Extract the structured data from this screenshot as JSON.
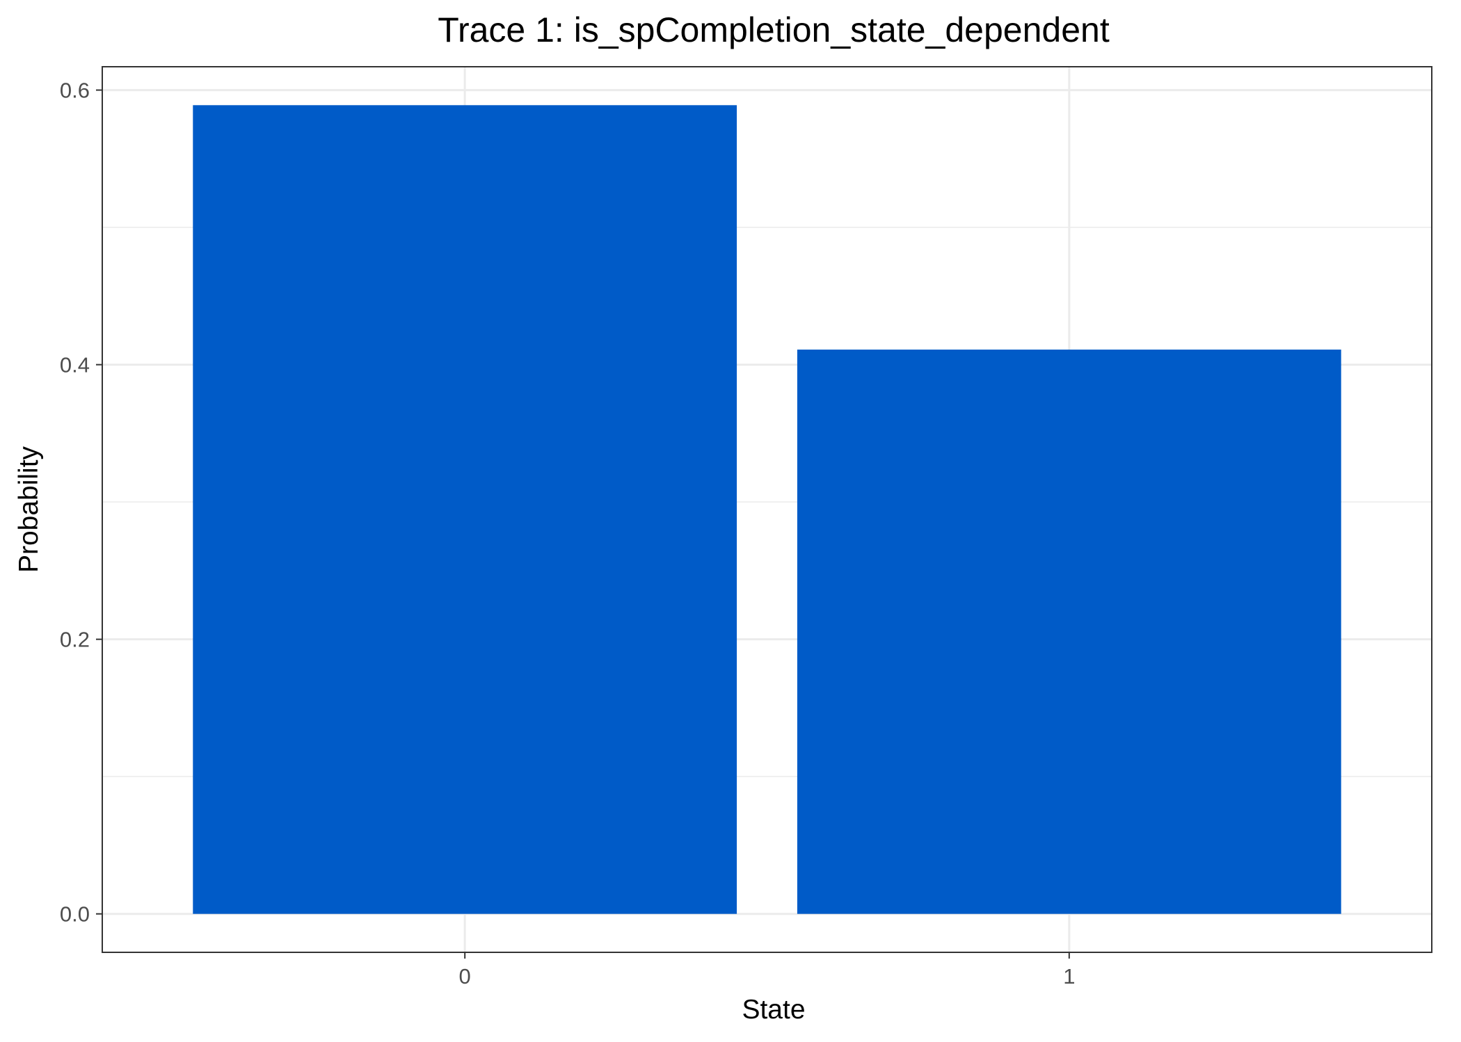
{
  "chart_data": {
    "type": "bar",
    "title": "Trace 1: is_spCompletion_state_dependent",
    "xlabel": "State",
    "ylabel": "Probability",
    "categories": [
      "0",
      "1"
    ],
    "values": [
      0.589,
      0.411
    ],
    "ylim": [
      -0.028,
      0.617
    ],
    "yticks": [
      0.0,
      0.2,
      0.4,
      0.6
    ],
    "ytick_labels": [
      "0.0",
      "0.2",
      "0.4",
      "0.6"
    ],
    "grid": true,
    "legend": "none",
    "bar_color": "#005BC8",
    "grid_color": "#EBEBEB",
    "border_color": "#333333"
  }
}
